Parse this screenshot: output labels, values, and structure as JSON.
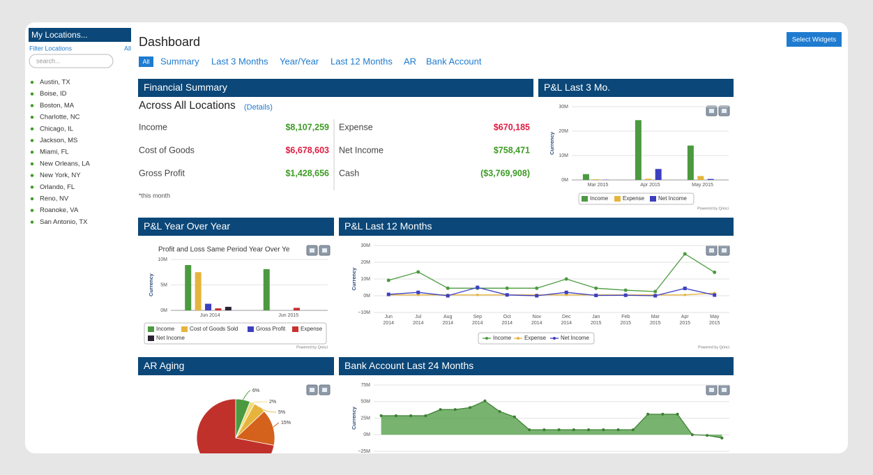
{
  "sidebar": {
    "title": "My Locations...",
    "filter": "Filter Locations",
    "all": "All",
    "search_placeholder": "search...",
    "locations": [
      "Austin, TX",
      "Boise, ID",
      "Boston, MA",
      "Charlotte, NC",
      "Chicago, IL",
      "Jackson, MS",
      "Miami, FL",
      "New Orleans, LA",
      "New York, NY",
      "Orlando, FL",
      "Reno, NV",
      "Roanoke, VA",
      "San Antonio, TX"
    ]
  },
  "header": {
    "title": "Dashboard",
    "button": "Select Widgets",
    "tabs": [
      "All",
      "Summary",
      "Last 3 Months",
      "Year/Year",
      "Last 12 Months",
      "AR",
      "Bank Account"
    ]
  },
  "financial_summary": {
    "title": "Financial Summary",
    "subtitle": "Across All Locations",
    "details": "(Details)",
    "note": "*this month",
    "items": [
      {
        "label": "Income",
        "value": "$8,107,259",
        "color": "#3c9b23"
      },
      {
        "label": "Expense",
        "value": "$670,185",
        "color": "#e0193f"
      },
      {
        "label": "Cost of Goods",
        "value": "$6,678,603",
        "color": "#e0193f"
      },
      {
        "label": "Net Income",
        "value": "$758,471",
        "color": "#3c9b23"
      },
      {
        "label": "Gross Profit",
        "value": "$1,428,656",
        "color": "#3c9b23"
      },
      {
        "label": "Cash",
        "value": "($3,769,908)",
        "color": "#3c9b23"
      }
    ]
  },
  "pl_last_3": {
    "title": "P&L Last 3 Mo.",
    "chart": {
      "type": "bar",
      "y_label": "Currency",
      "credit": "Powered by Qrinci",
      "categories": [
        "Mar 2015",
        "Apr 2015",
        "May 2015"
      ],
      "series": [
        {
          "name": "Income",
          "color": "#4b9a3f",
          "values": [
            2.4,
            24.5,
            14.1
          ]
        },
        {
          "name": "Expense",
          "color": "#e6b43c",
          "values": [
            0.3,
            0.5,
            1.6
          ]
        },
        {
          "name": "Net Income",
          "color": "#3d3fbf",
          "values": [
            0.1,
            4.5,
            0.4
          ]
        }
      ],
      "ylim": [
        0,
        30
      ],
      "yticks": [
        {
          "value": 0,
          "label": "0M"
        },
        {
          "value": 10,
          "label": "10M"
        },
        {
          "value": 20,
          "label": "20M"
        },
        {
          "value": 30,
          "label": "30M"
        }
      ]
    }
  },
  "pl_year_over_year": {
    "title": "P&L Year Over Year",
    "chart": {
      "type": "bar",
      "title": "Profit and Loss Same Period Year Over Ye",
      "y_label": "Currency",
      "credit": "Powered by Qrinci",
      "categories": [
        "Jun 2014",
        "Jun 2015"
      ],
      "series": [
        {
          "name": "Income",
          "color": "#4b9a3f",
          "values": [
            8.9,
            8.1
          ]
        },
        {
          "name": "Cost of Goods Sold",
          "color": "#e6b43c",
          "values": [
            7.5,
            0
          ]
        },
        {
          "name": "Gross Profit",
          "color": "#3d3fbf",
          "values": [
            1.3,
            0
          ]
        },
        {
          "name": "Expense",
          "color": "#c8312e",
          "values": [
            0.4,
            0.5
          ]
        },
        {
          "name": "Net Income",
          "color": "#2b2233",
          "values": [
            0.7,
            0
          ]
        }
      ],
      "ylim": [
        0,
        10
      ],
      "yticks": [
        {
          "value": 0,
          "label": "0M"
        },
        {
          "value": 5,
          "label": "5M"
        },
        {
          "value": 10,
          "label": "10M"
        }
      ]
    }
  },
  "pl_last_12": {
    "title": "P&L Last 12 Months",
    "chart": {
      "type": "line",
      "y_label": "Currency",
      "credit": "Powered by Qrinci",
      "categories": [
        {
          "month": "Jun",
          "year": "2014"
        },
        {
          "month": "Jul",
          "year": "2014"
        },
        {
          "month": "Aug",
          "year": "2014"
        },
        {
          "month": "Sep",
          "year": "2014"
        },
        {
          "month": "Oct",
          "year": "2014"
        },
        {
          "month": "Nov",
          "year": "2014"
        },
        {
          "month": "Dec",
          "year": "2014"
        },
        {
          "month": "Jan",
          "year": "2015"
        },
        {
          "month": "Feb",
          "year": "2015"
        },
        {
          "month": "Mar",
          "year": "2015"
        },
        {
          "month": "Apr",
          "year": "2015"
        },
        {
          "month": "May",
          "year": "2015"
        }
      ],
      "series": [
        {
          "name": "Income",
          "color": "#4b9a3f",
          "values": [
            9.2,
            14.2,
            4.5,
            4.5,
            4.5,
            4.5,
            10,
            4.5,
            3.3,
            2.5,
            25,
            14
          ]
        },
        {
          "name": "Expense",
          "color": "#e6b43c",
          "values": [
            0.5,
            0.5,
            0.5,
            0.5,
            0.5,
            0.5,
            0.5,
            0.5,
            0.5,
            0.5,
            0.5,
            1.6
          ]
        },
        {
          "name": "Net Income",
          "color": "#3d3fbf",
          "values": [
            0.8,
            2,
            0,
            5,
            0.5,
            0,
            2,
            0.2,
            0.3,
            0,
            4.4,
            0.4
          ]
        }
      ],
      "ylim": [
        -10,
        30
      ],
      "yticks": [
        {
          "value": -10,
          "label": "−10M"
        },
        {
          "value": 0,
          "label": "0M"
        },
        {
          "value": 10,
          "label": "10M"
        },
        {
          "value": 20,
          "label": "20M"
        },
        {
          "value": 30,
          "label": "30M"
        }
      ]
    }
  },
  "ar_aging": {
    "title": "AR Aging",
    "chart": {
      "type": "pie",
      "values": [
        6,
        2,
        5,
        15,
        72
      ],
      "value_labels": [
        "6%",
        "2%",
        "5%",
        "15%",
        null
      ],
      "colors": [
        "#4b9a3f",
        "#f0dc7a",
        "#e6b43c",
        "#d4621c",
        "#c0312b"
      ]
    }
  },
  "bank_account": {
    "title": "Bank Account Last 24 Months",
    "chart": {
      "type": "area",
      "y_label": "Currency",
      "color": "#4b9a3f",
      "values": [
        28.7,
        28.7,
        28.7,
        28.7,
        38,
        38,
        41,
        51,
        35,
        27,
        7.5,
        7.5,
        7.5,
        7.5,
        7.5,
        7.5,
        7.5,
        7.5,
        31,
        31,
        31,
        0,
        -1,
        -5
      ],
      "ylim": [
        -25,
        75
      ],
      "yticks": [
        {
          "value": -25,
          "label": "−25M"
        },
        {
          "value": 0,
          "label": "0M"
        },
        {
          "value": 25,
          "label": "25M"
        },
        {
          "value": 50,
          "label": "50M"
        },
        {
          "value": 75,
          "label": "75M"
        }
      ]
    }
  }
}
